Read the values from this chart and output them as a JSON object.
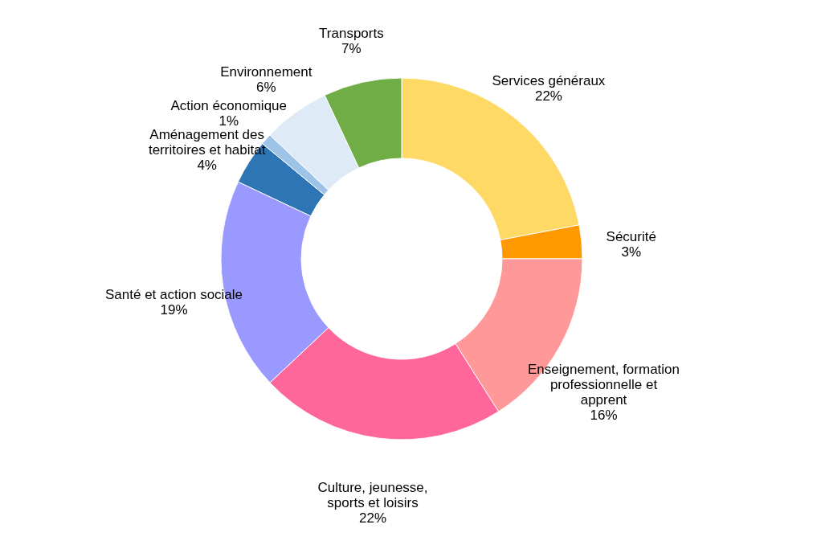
{
  "chart_data": {
    "type": "donut",
    "categories": [
      "Services généraux",
      "Sécurité",
      "Enseignement, formation professionnelle et apprent",
      "Culture, jeunesse, sports et loisirs",
      "Santé et action sociale",
      "Aménagement des territoires et habitat",
      "Action économique",
      "Environnement",
      "Transports"
    ],
    "values": [
      22,
      3,
      16,
      22,
      19,
      4,
      1,
      6,
      7
    ],
    "value_labels": [
      "22%",
      "3%",
      "16%",
      "22%",
      "19%",
      "4%",
      "1%",
      "6%",
      "7%"
    ],
    "colors": [
      "#ffd966",
      "#ff9900",
      "#ff9999",
      "#ff6699",
      "#9999ff",
      "#2e75b6",
      "#9dc3e6",
      "#deebf7",
      "#70ad47"
    ]
  }
}
